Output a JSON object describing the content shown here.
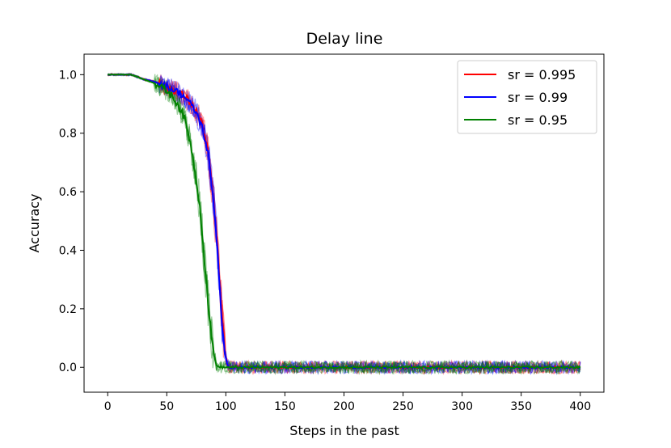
{
  "chart_data": {
    "type": "line",
    "title": "Delay line",
    "xlabel": "Steps in the past",
    "ylabel": "Accuracy",
    "xlim": [
      -20,
      420
    ],
    "ylim": [
      -0.085,
      1.07
    ],
    "xticks": [
      0,
      50,
      100,
      150,
      200,
      250,
      300,
      350,
      400
    ],
    "xtick_labels": [
      "0",
      "50",
      "100",
      "150",
      "200",
      "250",
      "300",
      "350",
      "400"
    ],
    "yticks": [
      0.0,
      0.2,
      0.4,
      0.6,
      0.8,
      1.0
    ],
    "ytick_labels": [
      "0.0",
      "0.2",
      "0.4",
      "0.6",
      "0.8",
      "1.0"
    ],
    "grid": false,
    "legend_position": "top-right",
    "series": [
      {
        "name": "sr = 0.995",
        "color": "#ff0000",
        "x": [
          0,
          20,
          30,
          40,
          50,
          55,
          60,
          65,
          70,
          75,
          80,
          85,
          90,
          93,
          95,
          97,
          99,
          101,
          103,
          105,
          400
        ],
        "y": [
          1.0,
          1.0,
          0.985,
          0.975,
          0.96,
          0.95,
          0.94,
          0.925,
          0.905,
          0.875,
          0.83,
          0.74,
          0.55,
          0.4,
          0.28,
          0.16,
          0.06,
          0.01,
          0.0,
          0.0,
          0.0
        ]
      },
      {
        "name": "sr = 0.99",
        "color": "#0000ff",
        "x": [
          0,
          20,
          30,
          40,
          50,
          55,
          60,
          65,
          70,
          75,
          80,
          85,
          90,
          93,
          95,
          97,
          99,
          101,
          103,
          105,
          400
        ],
        "y": [
          1.0,
          1.0,
          0.985,
          0.975,
          0.96,
          0.95,
          0.94,
          0.925,
          0.9,
          0.87,
          0.82,
          0.73,
          0.55,
          0.4,
          0.26,
          0.14,
          0.05,
          0.01,
          0.0,
          0.0,
          0.0
        ]
      },
      {
        "name": "sr = 0.95",
        "color": "#008000",
        "x": [
          0,
          20,
          30,
          40,
          50,
          55,
          60,
          65,
          70,
          75,
          78,
          80,
          82,
          85,
          88,
          90,
          92,
          94,
          96,
          400
        ],
        "y": [
          1.0,
          1.0,
          0.985,
          0.97,
          0.945,
          0.925,
          0.895,
          0.85,
          0.77,
          0.64,
          0.55,
          0.46,
          0.36,
          0.22,
          0.1,
          0.04,
          0.01,
          0.0,
          0.0,
          0.0
        ]
      }
    ]
  }
}
